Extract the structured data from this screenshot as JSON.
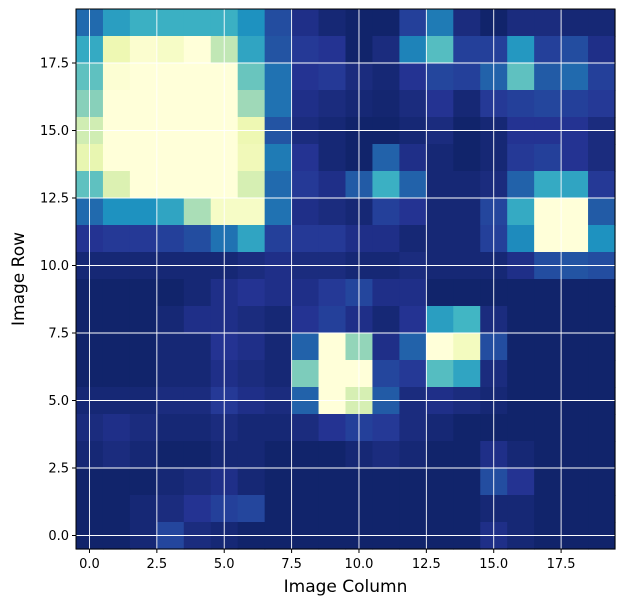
{
  "chart_data": {
    "type": "heatmap",
    "title": "",
    "xlabel": "Image Column",
    "ylabel": "Image Row",
    "xlim": [
      -0.5,
      19.5
    ],
    "ylim": [
      -0.5,
      19.5
    ],
    "xticks": [
      0.0,
      2.5,
      5.0,
      7.5,
      10.0,
      12.5,
      15.0,
      17.5
    ],
    "xtick_labels": [
      "0.0",
      "2.5",
      "5.0",
      "7.5",
      "10.0",
      "12.5",
      "15.0",
      "17.5"
    ],
    "yticks": [
      0.0,
      2.5,
      5.0,
      7.5,
      10.0,
      12.5,
      15.0,
      17.5
    ],
    "ytick_labels": [
      "0.0",
      "2.5",
      "5.0",
      "7.5",
      "10.0",
      "12.5",
      "15.0",
      "17.5"
    ],
    "grid": true,
    "colormap": "YlGnBu",
    "value_range": [
      0.0,
      1.0
    ],
    "rows_from_top": [
      [
        0.72,
        0.58,
        0.52,
        0.52,
        0.52,
        0.52,
        0.62,
        0.8,
        0.9,
        0.94,
        0.96,
        0.96,
        0.84,
        0.68,
        0.92,
        0.96,
        0.92,
        0.92,
        0.94,
        0.94
      ],
      [
        0.54,
        0.12,
        0.03,
        0.06,
        0.0,
        0.26,
        0.56,
        0.78,
        0.86,
        0.88,
        0.96,
        0.92,
        0.66,
        0.46,
        0.84,
        0.84,
        0.6,
        0.84,
        0.8,
        0.9
      ],
      [
        0.44,
        0.02,
        0.0,
        0.0,
        0.0,
        0.0,
        0.42,
        0.7,
        0.88,
        0.86,
        0.92,
        0.94,
        0.88,
        0.82,
        0.84,
        0.74,
        0.44,
        0.76,
        0.72,
        0.84
      ],
      [
        0.36,
        0.0,
        0.0,
        0.0,
        0.0,
        0.0,
        0.32,
        0.7,
        0.9,
        0.92,
        0.94,
        0.95,
        0.92,
        0.88,
        0.94,
        0.86,
        0.84,
        0.82,
        0.84,
        0.86
      ],
      [
        0.22,
        0.0,
        0.0,
        0.0,
        0.0,
        0.0,
        0.12,
        0.78,
        0.92,
        0.94,
        0.96,
        0.96,
        0.94,
        0.92,
        0.96,
        0.94,
        0.88,
        0.88,
        0.88,
        0.92
      ],
      [
        0.14,
        0.0,
        0.0,
        0.0,
        0.0,
        0.0,
        0.1,
        0.68,
        0.88,
        0.94,
        0.96,
        0.74,
        0.9,
        0.94,
        0.96,
        0.94,
        0.86,
        0.84,
        0.88,
        0.92
      ],
      [
        0.44,
        0.18,
        0.0,
        0.0,
        0.0,
        0.0,
        0.2,
        0.72,
        0.86,
        0.9,
        0.76,
        0.52,
        0.74,
        0.94,
        0.94,
        0.92,
        0.74,
        0.54,
        0.56,
        0.86
      ],
      [
        0.72,
        0.62,
        0.62,
        0.56,
        0.3,
        0.06,
        0.06,
        0.7,
        0.9,
        0.92,
        0.94,
        0.84,
        0.88,
        0.94,
        0.94,
        0.82,
        0.54,
        0.0,
        0.0,
        0.76
      ],
      [
        0.88,
        0.86,
        0.86,
        0.84,
        0.8,
        0.7,
        0.56,
        0.84,
        0.86,
        0.86,
        0.9,
        0.9,
        0.94,
        0.94,
        0.94,
        0.84,
        0.64,
        0.0,
        0.0,
        0.62
      ],
      [
        0.94,
        0.94,
        0.94,
        0.94,
        0.94,
        0.94,
        0.92,
        0.9,
        0.92,
        0.92,
        0.94,
        0.94,
        0.92,
        0.94,
        0.94,
        0.94,
        0.9,
        0.8,
        0.78,
        0.8
      ],
      [
        0.96,
        0.96,
        0.96,
        0.96,
        0.94,
        0.9,
        0.88,
        0.9,
        0.9,
        0.86,
        0.82,
        0.9,
        0.9,
        0.96,
        0.96,
        0.96,
        0.96,
        0.96,
        0.96,
        0.96
      ],
      [
        0.96,
        0.96,
        0.96,
        0.94,
        0.9,
        0.9,
        0.92,
        0.94,
        0.88,
        0.84,
        0.9,
        0.94,
        0.88,
        0.58,
        0.5,
        0.92,
        0.96,
        0.96,
        0.96,
        0.96
      ],
      [
        0.96,
        0.96,
        0.96,
        0.94,
        0.94,
        0.88,
        0.9,
        0.94,
        0.74,
        0.0,
        0.34,
        0.9,
        0.74,
        0.0,
        0.08,
        0.8,
        0.96,
        0.96,
        0.96,
        0.96
      ],
      [
        0.96,
        0.96,
        0.96,
        0.94,
        0.94,
        0.9,
        0.92,
        0.94,
        0.38,
        0.0,
        0.0,
        0.82,
        0.86,
        0.46,
        0.56,
        0.92,
        0.96,
        0.96,
        0.96,
        0.96
      ],
      [
        0.94,
        0.94,
        0.94,
        0.92,
        0.92,
        0.86,
        0.9,
        0.92,
        0.74,
        0.0,
        0.2,
        0.76,
        0.92,
        0.9,
        0.92,
        0.94,
        0.96,
        0.96,
        0.96,
        0.96
      ],
      [
        0.92,
        0.9,
        0.92,
        0.94,
        0.94,
        0.92,
        0.94,
        0.94,
        0.92,
        0.88,
        0.84,
        0.86,
        0.92,
        0.94,
        0.96,
        0.96,
        0.96,
        0.96,
        0.96,
        0.96
      ],
      [
        0.94,
        0.92,
        0.94,
        0.96,
        0.96,
        0.94,
        0.94,
        0.96,
        0.96,
        0.96,
        0.94,
        0.92,
        0.94,
        0.96,
        0.96,
        0.9,
        0.94,
        0.96,
        0.96,
        0.96
      ],
      [
        0.96,
        0.96,
        0.96,
        0.94,
        0.92,
        0.9,
        0.94,
        0.96,
        0.96,
        0.96,
        0.96,
        0.96,
        0.96,
        0.96,
        0.96,
        0.8,
        0.88,
        0.96,
        0.96,
        0.96
      ],
      [
        0.96,
        0.96,
        0.94,
        0.92,
        0.88,
        0.84,
        0.82,
        0.96,
        0.96,
        0.96,
        0.96,
        0.96,
        0.96,
        0.96,
        0.96,
        0.94,
        0.94,
        0.96,
        0.96,
        0.96
      ],
      [
        0.96,
        0.96,
        0.94,
        0.82,
        0.92,
        0.94,
        0.96,
        0.96,
        0.96,
        0.96,
        0.96,
        0.96,
        0.96,
        0.96,
        0.96,
        0.9,
        0.94,
        0.96,
        0.96,
        0.96
      ]
    ]
  }
}
